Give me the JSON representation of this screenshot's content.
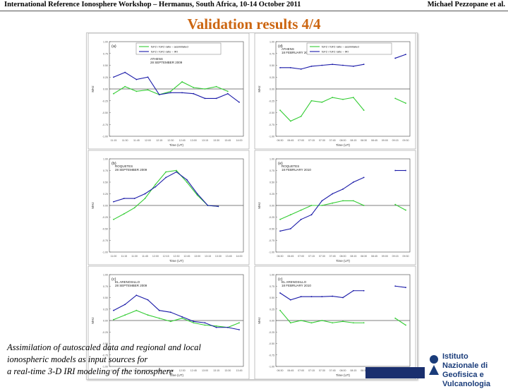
{
  "header": {
    "left": "International Reference Ionosphere Workshop – Hermanus, South Africa, 10-14 October 2011",
    "right": "Michael Pezzopane et al."
  },
  "slide": {
    "title": "Validation results 4/4"
  },
  "footer": {
    "line1": "Assimilation of autoscaled data and regional and local ionospheric models as input sources for",
    "line2": "a real-time 3-D IRI modeling of the ionosphere",
    "logo_line1": "Istituto Nazionale di",
    "logo_line2": "Geofisica e Vulcanologia"
  },
  "legend": [
    {
      "label": "foF2 / foF2 ratio – assimilated",
      "color": "#33cc33"
    },
    {
      "label": "foF2 / foF2 ratio – IRI",
      "color": "#1a1aa8"
    }
  ],
  "colors": {
    "green": "#33cc33",
    "blue": "#1a1aa8",
    "title": "#cc6611"
  },
  "chart_data": [
    {
      "type": "line",
      "panel": "(a)",
      "title": "ATHENS",
      "subtitle": "28 SEPTEMBER 2009",
      "xlabel": "Time (UT)",
      "ylabel": "MHz",
      "ylim": [
        -1.0,
        1.0
      ],
      "reference": 0.0,
      "x": [
        "11:15",
        "11:30",
        "11:45",
        "12:00",
        "12:15",
        "12:30",
        "12:45",
        "13:00",
        "13:15",
        "13:30",
        "13:45",
        "14:00"
      ],
      "series": [
        {
          "name": "assimilated",
          "color": "#33cc33",
          "values": [
            -0.1,
            0.05,
            -0.05,
            -0.02,
            -0.12,
            -0.05,
            0.15,
            0.03,
            0.0,
            0.05,
            -0.05,
            null
          ]
        },
        {
          "name": "IRI",
          "color": "#1a1aa8",
          "values": [
            0.25,
            0.35,
            0.2,
            0.25,
            -0.12,
            -0.08,
            -0.08,
            -0.1,
            -0.2,
            -0.2,
            -0.1,
            -0.28
          ]
        }
      ]
    },
    {
      "type": "line",
      "panel": "(d)",
      "title": "ATHENS",
      "subtitle": "18 FEBRUARY 2010",
      "xlabel": "Time (UT)",
      "ylabel": "MHz",
      "ylim": [
        -1.0,
        1.0
      ],
      "reference": 0.0,
      "x": [
        "06:30",
        "06:45",
        "07:00",
        "07:15",
        "07:30",
        "07:45",
        "08:00",
        "08:15",
        "08:30",
        "08:45",
        "09:00",
        "09:15",
        "09:30"
      ],
      "series": [
        {
          "name": "assimilated",
          "color": "#33cc33",
          "values": [
            -0.45,
            -0.68,
            -0.58,
            -0.25,
            -0.28,
            -0.18,
            -0.22,
            -0.18,
            -0.45,
            null,
            null,
            -0.2,
            -0.3
          ]
        },
        {
          "name": "IRI",
          "color": "#1a1aa8",
          "values": [
            0.45,
            0.45,
            0.42,
            0.48,
            0.5,
            0.52,
            0.5,
            0.48,
            0.52,
            null,
            null,
            0.65,
            0.73
          ]
        }
      ]
    },
    {
      "type": "line",
      "panel": "(b)",
      "title": "ROQUETES",
      "subtitle": "28 SEPTEMBER 2009",
      "xlabel": "Time (UT)",
      "ylabel": "MHz",
      "ylim": [
        -1.0,
        1.0
      ],
      "reference": 0.0,
      "x": [
        "11:00",
        "11:15",
        "11:30",
        "11:45",
        "12:00",
        "12:15",
        "12:30",
        "12:45",
        "13:00",
        "13:15",
        "13:30",
        "13:45",
        "14:00"
      ],
      "series": [
        {
          "name": "assimilated",
          "color": "#33cc33",
          "values": [
            -0.3,
            -0.18,
            -0.05,
            0.15,
            0.45,
            0.72,
            0.75,
            0.5,
            0.22,
            0.0,
            -0.02,
            null,
            null
          ]
        },
        {
          "name": "IRI",
          "color": "#1a1aa8",
          "values": [
            0.08,
            0.15,
            0.15,
            0.25,
            0.4,
            0.6,
            0.72,
            0.55,
            0.25,
            0.0,
            -0.02,
            null,
            null
          ]
        }
      ]
    },
    {
      "type": "line",
      "panel": "(e)",
      "title": "ROQUETES",
      "subtitle": "18 FEBRUARY 2010",
      "xlabel": "Time (UT)",
      "ylabel": "MHz",
      "ylim": [
        -1.0,
        1.0
      ],
      "reference": 0.0,
      "x": [
        "06:30",
        "06:45",
        "07:00",
        "07:15",
        "07:30",
        "07:45",
        "08:00",
        "08:15",
        "08:30",
        "08:45",
        "09:00",
        "09:15",
        "09:30"
      ],
      "series": [
        {
          "name": "assimilated",
          "color": "#33cc33",
          "values": [
            -0.3,
            -0.2,
            -0.1,
            0.0,
            0.0,
            0.05,
            0.1,
            0.1,
            0.0,
            null,
            null,
            0.02,
            -0.1
          ]
        },
        {
          "name": "IRI",
          "color": "#1a1aa8",
          "values": [
            -0.55,
            -0.5,
            -0.3,
            -0.2,
            0.1,
            0.25,
            0.35,
            0.5,
            0.6,
            null,
            null,
            0.75,
            0.75
          ]
        }
      ]
    },
    {
      "type": "line",
      "panel": "(c)",
      "title": "EL ARENOSILLO",
      "subtitle": "28 SEPTEMBER 2009",
      "xlabel": "Time (UT)",
      "ylabel": "MHz",
      "ylim": [
        -1.0,
        1.0
      ],
      "reference": 0.0,
      "x": [
        "11:00",
        "11:15",
        "11:30",
        "11:45",
        "12:00",
        "12:15",
        "12:30",
        "12:45",
        "13:00",
        "13:15",
        "13:30",
        "13:45"
      ],
      "series": [
        {
          "name": "assimilated",
          "color": "#33cc33",
          "values": [
            0.02,
            0.12,
            0.22,
            0.12,
            0.05,
            -0.02,
            0.05,
            -0.05,
            -0.1,
            -0.12,
            -0.15,
            -0.05
          ]
        },
        {
          "name": "IRI",
          "color": "#1a1aa8",
          "values": [
            0.22,
            0.35,
            0.55,
            0.45,
            0.22,
            0.18,
            0.08,
            -0.02,
            -0.05,
            -0.15,
            -0.15,
            -0.2
          ]
        }
      ]
    },
    {
      "type": "line",
      "panel": "(c)",
      "title": "EL ARENOSILLO",
      "subtitle": "18 FEBRUARY 2010",
      "xlabel": "Time (UT)",
      "ylabel": "MHz",
      "ylim": [
        -1.0,
        1.0
      ],
      "reference": 0.0,
      "x": [
        "06:30",
        "06:45",
        "07:00",
        "07:15",
        "07:30",
        "07:45",
        "08:00",
        "08:15",
        "08:30",
        "08:45",
        "09:00",
        "09:15",
        "09:30"
      ],
      "series": [
        {
          "name": "assimilated",
          "color": "#33cc33",
          "values": [
            0.22,
            -0.05,
            0.0,
            -0.05,
            0.0,
            -0.05,
            -0.02,
            -0.05,
            -0.05,
            null,
            null,
            0.05,
            -0.1
          ]
        },
        {
          "name": "IRI",
          "color": "#1a1aa8",
          "values": [
            0.6,
            0.45,
            0.52,
            0.52,
            0.52,
            0.53,
            0.5,
            0.65,
            0.65,
            null,
            null,
            0.75,
            0.72
          ]
        }
      ]
    }
  ]
}
